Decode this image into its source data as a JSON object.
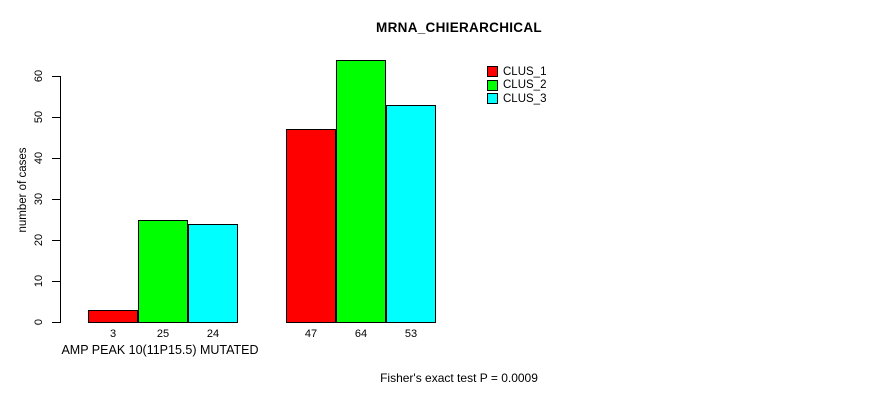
{
  "chart_data": {
    "type": "bar",
    "title": "MRNA_CHIERARCHICAL",
    "xlabel": "",
    "ylabel": "number of cases",
    "categories": [
      "AMP PEAK 10(11P15.5) MUTATED",
      ""
    ],
    "series": [
      {
        "name": "CLUS_1",
        "color": "#ff0000",
        "values": [
          3,
          47
        ]
      },
      {
        "name": "CLUS_2",
        "color": "#00ff00",
        "values": [
          25,
          64
        ]
      },
      {
        "name": "CLUS_3",
        "color": "#00ffff",
        "values": [
          24,
          53
        ]
      }
    ],
    "yticks": [
      0,
      10,
      20,
      30,
      40,
      50,
      60
    ],
    "ylim": [
      0,
      64
    ],
    "bar_value_labels": true,
    "grid": false,
    "legend_position": "top-right",
    "axis_color": "#000000",
    "bar_border_color": "#000000",
    "annotation": "Fisher's exact test P = 0.0009"
  }
}
